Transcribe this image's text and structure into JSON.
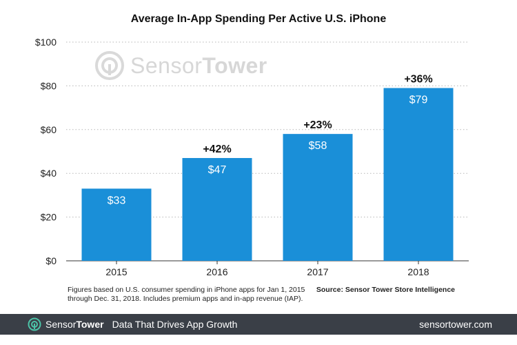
{
  "chart_data": {
    "type": "bar",
    "title": "Average In-App Spending Per Active U.S. iPhone",
    "categories": [
      "2015",
      "2016",
      "2017",
      "2018"
    ],
    "values": [
      33,
      47,
      58,
      79
    ],
    "value_labels": [
      "$33",
      "$47",
      "$58",
      "$79"
    ],
    "growth_labels": [
      "",
      "+42%",
      "+23%",
      "+36%"
    ],
    "yticks": [
      0,
      20,
      40,
      60,
      80,
      100
    ],
    "ytick_labels": [
      "$0",
      "$20",
      "$40",
      "$60",
      "$80",
      "$100"
    ],
    "ylim": [
      0,
      100
    ],
    "xlabel": "",
    "ylabel": "",
    "grid": true,
    "bar_color": "#1a8fd8"
  },
  "watermark": {
    "brand_light": "Sensor",
    "brand_bold": "Tower"
  },
  "note": "Figures based on U.S. consumer spending in iPhone apps for Jan 1, 2015 through Dec. 31, 2018. Includes premium apps and in-app revenue (IAP).",
  "source": "Source: Sensor Tower Store Intelligence",
  "footer": {
    "brand_light": "Sensor",
    "brand_bold": "Tower",
    "tagline": "Data That Drives App Growth",
    "url": "sensortower.com",
    "background": "#3a3f47",
    "logo_color": "#4cc4a8"
  }
}
